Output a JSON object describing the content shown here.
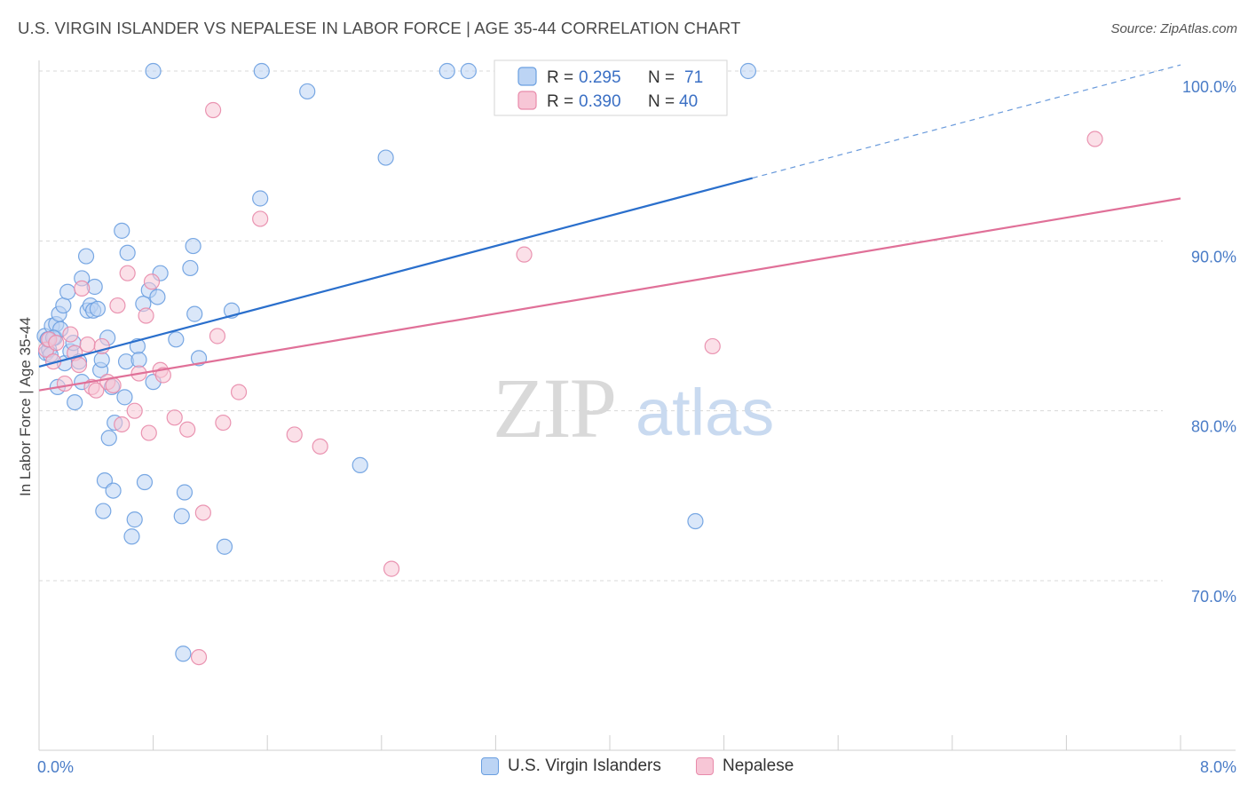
{
  "header": {
    "title": "U.S. VIRGIN ISLANDER VS NEPALESE IN LABOR FORCE | AGE 35-44 CORRELATION CHART",
    "source": "Source: ZipAtlas.com"
  },
  "watermark": {
    "zip": "ZIP",
    "atlas": "atlas"
  },
  "colors": {
    "blue": "#6a9fe0",
    "blue_fill": "#bcd4f4",
    "blue_line": "#2a6fcc",
    "pink": "#e88aaa",
    "pink_fill": "#f7c6d6",
    "pink_line": "#e07098",
    "grid": "#d8d8d8",
    "axis_text": "#4a7cc7"
  },
  "legend": {
    "rows": [
      {
        "r_label": "R = ",
        "r_value": "0.295",
        "n_label": "N = ",
        "n_value": "71"
      },
      {
        "r_label": "R = ",
        "r_value": "0.390",
        "n_label": "N = ",
        "n_value": "40"
      }
    ]
  },
  "bottom_legend": [
    "U.S. Virgin Islanders",
    "Nepalese"
  ],
  "chart_data": {
    "type": "scatter",
    "title": "U.S. VIRGIN ISLANDER VS NEPALESE IN LABOR FORCE | AGE 35-44 CORRELATION CHART",
    "xlabel": "",
    "ylabel": "In Labor Force | Age 35-44",
    "xlim": [
      0.0,
      8.0
    ],
    "ylim": [
      61.0,
      101.0
    ],
    "x_tick_labels": [
      "0.0%",
      "8.0%"
    ],
    "y_ticks": [
      70,
      80,
      90,
      100
    ],
    "y_tick_labels": [
      "70.0%",
      "80.0%",
      "90.0%",
      "100.0%"
    ],
    "grid": true,
    "legend_position": "top-center",
    "series": [
      {
        "name": "U.S. Virgin Islanders",
        "R": 0.295,
        "N": 71,
        "trend": {
          "x0": 0.0,
          "y0": 82.6,
          "x1": 5.0,
          "y1": 93.7,
          "dashed_to_x": 8.0
        },
        "points": [
          [
            0.04,
            84.4
          ],
          [
            0.05,
            83.4
          ],
          [
            0.06,
            84.2
          ],
          [
            0.07,
            83.6
          ],
          [
            0.08,
            83.3
          ],
          [
            0.09,
            85.0
          ],
          [
            0.11,
            84.3
          ],
          [
            0.12,
            85.1
          ],
          [
            0.13,
            81.4
          ],
          [
            0.14,
            85.7
          ],
          [
            0.15,
            84.8
          ],
          [
            0.17,
            86.2
          ],
          [
            0.18,
            82.8
          ],
          [
            0.2,
            87.0
          ],
          [
            0.22,
            83.5
          ],
          [
            0.24,
            84.0
          ],
          [
            0.25,
            80.5
          ],
          [
            0.28,
            82.9
          ],
          [
            0.3,
            81.7
          ],
          [
            0.3,
            87.8
          ],
          [
            0.33,
            89.1
          ],
          [
            0.34,
            85.9
          ],
          [
            0.36,
            86.2
          ],
          [
            0.38,
            85.9
          ],
          [
            0.39,
            87.3
          ],
          [
            0.41,
            86.0
          ],
          [
            0.43,
            82.4
          ],
          [
            0.44,
            83.0
          ],
          [
            0.45,
            74.1
          ],
          [
            0.46,
            75.9
          ],
          [
            0.48,
            84.3
          ],
          [
            0.49,
            78.4
          ],
          [
            0.51,
            81.4
          ],
          [
            0.52,
            75.3
          ],
          [
            0.53,
            79.3
          ],
          [
            0.58,
            90.6
          ],
          [
            0.6,
            80.8
          ],
          [
            0.61,
            82.9
          ],
          [
            0.62,
            89.3
          ],
          [
            0.65,
            72.6
          ],
          [
            0.67,
            73.6
          ],
          [
            0.69,
            83.8
          ],
          [
            0.7,
            83.0
          ],
          [
            0.73,
            86.3
          ],
          [
            0.74,
            75.8
          ],
          [
            0.77,
            87.1
          ],
          [
            0.8,
            81.7
          ],
          [
            0.83,
            86.7
          ],
          [
            0.85,
            88.1
          ],
          [
            0.8,
            100.0
          ],
          [
            0.96,
            84.2
          ],
          [
            1.0,
            73.8
          ],
          [
            1.01,
            65.7
          ],
          [
            1.02,
            75.2
          ],
          [
            1.06,
            88.4
          ],
          [
            1.08,
            89.7
          ],
          [
            1.09,
            85.7
          ],
          [
            1.12,
            83.1
          ],
          [
            1.3,
            72.0
          ],
          [
            1.35,
            85.9
          ],
          [
            1.55,
            92.5
          ],
          [
            1.56,
            100.0
          ],
          [
            1.88,
            98.8
          ],
          [
            2.25,
            76.8
          ],
          [
            2.43,
            94.9
          ],
          [
            2.86,
            100.0
          ],
          [
            3.01,
            100.0
          ],
          [
            4.6,
            73.5
          ],
          [
            4.97,
            100.0
          ],
          [
            0.06,
            84.2
          ],
          [
            0.1,
            84.3
          ]
        ]
      },
      {
        "name": "Nepalese",
        "R": 0.39,
        "N": 40,
        "trend": {
          "x0": 0.0,
          "y0": 81.2,
          "x1": 8.0,
          "y1": 92.5
        },
        "points": [
          [
            0.05,
            83.6
          ],
          [
            0.07,
            84.2
          ],
          [
            0.1,
            82.9
          ],
          [
            0.12,
            84.0
          ],
          [
            0.18,
            81.6
          ],
          [
            0.22,
            84.5
          ],
          [
            0.25,
            83.4
          ],
          [
            0.28,
            82.7
          ],
          [
            0.3,
            87.2
          ],
          [
            0.34,
            83.9
          ],
          [
            0.37,
            81.4
          ],
          [
            0.4,
            81.2
          ],
          [
            0.44,
            83.8
          ],
          [
            0.48,
            81.7
          ],
          [
            0.52,
            81.5
          ],
          [
            0.55,
            86.2
          ],
          [
            0.58,
            79.2
          ],
          [
            0.62,
            88.1
          ],
          [
            0.67,
            80.0
          ],
          [
            0.7,
            82.2
          ],
          [
            0.75,
            85.6
          ],
          [
            0.77,
            78.7
          ],
          [
            0.79,
            87.6
          ],
          [
            0.85,
            82.4
          ],
          [
            0.87,
            82.1
          ],
          [
            0.95,
            79.6
          ],
          [
            1.04,
            78.9
          ],
          [
            1.12,
            65.5
          ],
          [
            1.15,
            74.0
          ],
          [
            1.22,
            97.7
          ],
          [
            1.25,
            84.4
          ],
          [
            1.29,
            79.3
          ],
          [
            1.4,
            81.1
          ],
          [
            1.55,
            91.3
          ],
          [
            1.79,
            78.6
          ],
          [
            1.97,
            77.9
          ],
          [
            2.47,
            70.7
          ],
          [
            3.4,
            89.2
          ],
          [
            4.72,
            83.8
          ],
          [
            7.4,
            96.0
          ]
        ]
      }
    ]
  }
}
